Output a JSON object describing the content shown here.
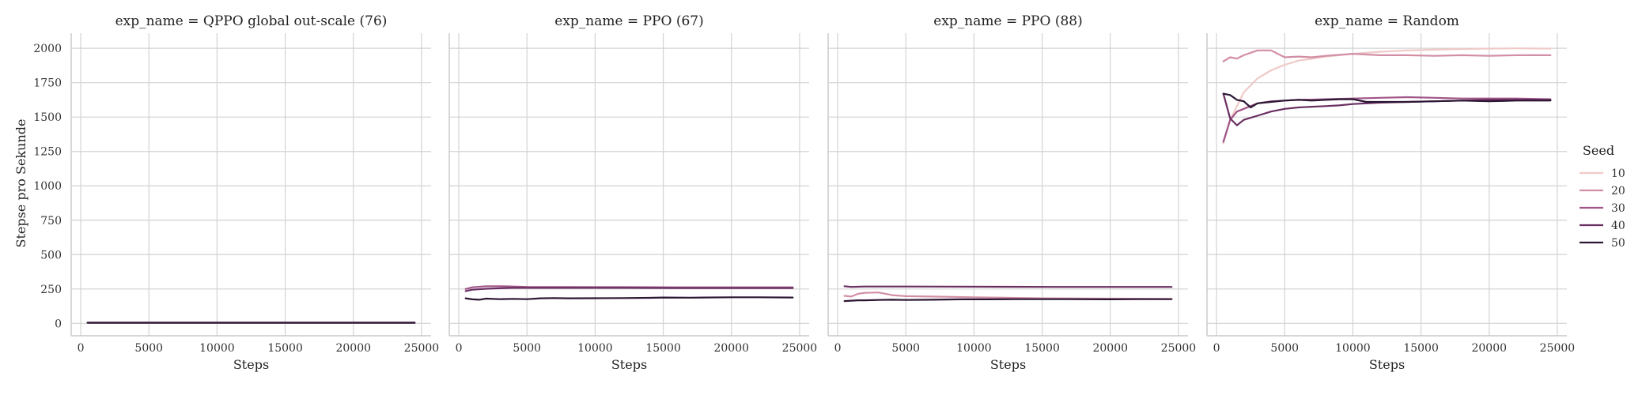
{
  "chart_data": {
    "type": "line",
    "ylabel": "Stepse pro Sekunde",
    "xlabel": "Steps",
    "ylim": [
      -90,
      2110
    ],
    "xlim": [
      -700,
      25700
    ],
    "yticks": [
      0,
      250,
      500,
      750,
      1000,
      1250,
      1500,
      1750,
      2000
    ],
    "xticks": [
      0,
      5000,
      10000,
      15000,
      20000,
      25000
    ],
    "grid": true,
    "legend": {
      "title": "Seed",
      "placement": "right",
      "entries": [
        "10",
        "20",
        "30",
        "40",
        "50"
      ],
      "colors": [
        "#efc9c7",
        "#d28ea5",
        "#a05587",
        "#6a2e62",
        "#2c1734"
      ]
    },
    "panels": [
      {
        "title": "exp_name = QPPO global out-scale (76)",
        "series": [
          {
            "name": "40",
            "color": "#6a2e62",
            "x": [
              500,
              5000,
              10000,
              15000,
              20000,
              24500
            ],
            "y": [
              6,
              6,
              6,
              6,
              6,
              6
            ]
          },
          {
            "name": "50",
            "color": "#2c1734",
            "x": [
              500,
              5000,
              10000,
              15000,
              20000,
              24500
            ],
            "y": [
              4,
              4,
              4,
              4,
              4,
              4
            ]
          }
        ]
      },
      {
        "title": "exp_name = PPO (67)",
        "series": [
          {
            "name": "30",
            "color": "#a05587",
            "x": [
              500,
              1000,
              2000,
              3000,
              4000,
              5000,
              8000,
              12000,
              16000,
              20000,
              24500
            ],
            "y": [
              250,
              262,
              270,
              270,
              268,
              265,
              264,
              263,
              262,
              262,
              262
            ]
          },
          {
            "name": "40",
            "color": "#6a2e62",
            "x": [
              500,
              1000,
              2000,
              3000,
              4000,
              5000,
              8000,
              12000,
              16000,
              20000,
              24500
            ],
            "y": [
              235,
              245,
              252,
              255,
              258,
              258,
              258,
              258,
              257,
              257,
              257
            ]
          },
          {
            "name": "50",
            "color": "#2c1734",
            "x": [
              500,
              1000,
              1500,
              2000,
              3000,
              4000,
              5000,
              6000,
              7000,
              8000,
              10000,
              12000,
              14000,
              15000,
              17000,
              20000,
              22000,
              24500
            ],
            "y": [
              182,
              175,
              172,
              180,
              176,
              178,
              176,
              182,
              184,
              182,
              183,
              184,
              186,
              188,
              187,
              190,
              190,
              188
            ]
          }
        ]
      },
      {
        "title": "exp_name = PPO (88)",
        "series": [
          {
            "name": "20",
            "color": "#d28ea5",
            "x": [
              500,
              1000,
              1500,
              2000,
              3000,
              4000,
              5000,
              7000,
              10000,
              15000,
              20000,
              24500
            ],
            "y": [
              200,
              195,
              215,
              222,
              225,
              205,
              198,
              195,
              190,
              182,
              180,
              178
            ]
          },
          {
            "name": "40",
            "color": "#6a2e62",
            "x": [
              500,
              1000,
              2000,
              3000,
              5000,
              8000,
              12000,
              16000,
              20000,
              24500
            ],
            "y": [
              270,
              265,
              268,
              268,
              268,
              267,
              266,
              265,
              265,
              265
            ]
          },
          {
            "name": "50",
            "color": "#2c1734",
            "x": [
              500,
              1000,
              1500,
              2000,
              3000,
              4000,
              5000,
              7000,
              9000,
              11000,
              13000,
              15000,
              17000,
              20000,
              22000,
              24500
            ],
            "y": [
              162,
              165,
              168,
              168,
              170,
              172,
              170,
              172,
              175,
              175,
              176,
              176,
              176,
              175,
              176,
              176
            ]
          }
        ]
      },
      {
        "title": "exp_name = Random",
        "series": [
          {
            "name": "10",
            "color": "#efc9c7",
            "x": [
              500,
              1000,
              1500,
              2000,
              3000,
              4000,
              5000,
              6000,
              8000,
              10000,
              12000,
              14000,
              16000,
              18000,
              20000,
              22000,
              24500
            ],
            "y": [
              1310,
              1480,
              1580,
              1680,
              1780,
              1840,
              1880,
              1910,
              1940,
              1960,
              1975,
              1985,
              1990,
              1995,
              1998,
              2000,
              1998
            ]
          },
          {
            "name": "20",
            "color": "#d28ea5",
            "x": [
              500,
              1000,
              1500,
              2000,
              3000,
              4000,
              5000,
              6000,
              7000,
              8000,
              10000,
              12000,
              14000,
              16000,
              18000,
              20000,
              22000,
              24500
            ],
            "y": [
              1905,
              1935,
              1925,
              1950,
              1985,
              1985,
              1935,
              1940,
              1935,
              1945,
              1960,
              1950,
              1950,
              1945,
              1950,
              1945,
              1950,
              1950
            ]
          },
          {
            "name": "30",
            "color": "#a05587",
            "x": [
              500,
              1000,
              1500,
              2000,
              3000,
              4000,
              5000,
              6000,
              8000,
              10000,
              12000,
              14000,
              16000,
              18000,
              20000,
              22000,
              24500
            ],
            "y": [
              1320,
              1480,
              1540,
              1560,
              1600,
              1615,
              1620,
              1625,
              1630,
              1635,
              1640,
              1645,
              1640,
              1635,
              1635,
              1635,
              1630
            ]
          },
          {
            "name": "40",
            "color": "#6a2e62",
            "x": [
              500,
              1000,
              1500,
              2000,
              3000,
              4000,
              5000,
              6000,
              7000,
              8000,
              9000,
              10000,
              12000,
              14000,
              16000,
              18000,
              20000,
              22000,
              24500
            ],
            "y": [
              1670,
              1490,
              1440,
              1480,
              1510,
              1540,
              1560,
              1570,
              1575,
              1580,
              1585,
              1595,
              1605,
              1610,
              1615,
              1620,
              1625,
              1625,
              1625
            ]
          },
          {
            "name": "50",
            "color": "#2c1734",
            "x": [
              500,
              1000,
              1500,
              2000,
              2500,
              3000,
              4000,
              5000,
              6000,
              7000,
              8000,
              9000,
              10000,
              11000,
              12000,
              14000,
              16000,
              18000,
              20000,
              22000,
              24500
            ],
            "y": [
              1670,
              1660,
              1625,
              1615,
              1570,
              1600,
              1610,
              1620,
              1625,
              1620,
              1625,
              1630,
              1630,
              1610,
              1610,
              1610,
              1615,
              1620,
              1615,
              1620,
              1620
            ]
          }
        ]
      }
    ]
  }
}
